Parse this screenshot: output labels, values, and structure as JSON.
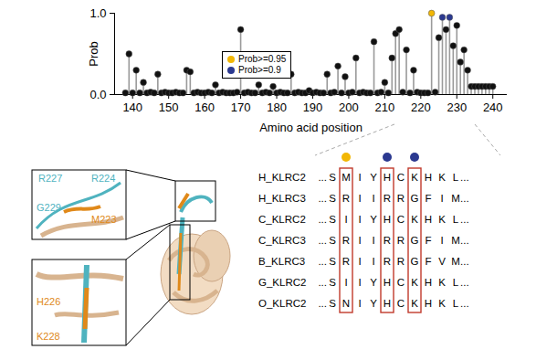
{
  "chart_data": {
    "type": "lollipop",
    "x_label": "Amino acid position",
    "y_label": "Prob",
    "x": [
      138,
      139,
      140,
      141,
      142,
      143,
      144,
      145,
      146,
      147,
      148,
      149,
      150,
      151,
      152,
      153,
      154,
      155,
      156,
      157,
      158,
      159,
      160,
      161,
      162,
      163,
      164,
      165,
      166,
      167,
      168,
      169,
      170,
      171,
      172,
      173,
      174,
      175,
      176,
      177,
      178,
      179,
      180,
      181,
      182,
      183,
      184,
      185,
      186,
      187,
      188,
      189,
      190,
      191,
      192,
      193,
      194,
      195,
      196,
      197,
      198,
      199,
      200,
      201,
      202,
      203,
      204,
      205,
      206,
      207,
      208,
      209,
      210,
      211,
      212,
      213,
      214,
      215,
      216,
      217,
      218,
      219,
      220,
      221,
      222,
      223,
      224,
      225,
      226,
      227,
      228,
      229,
      230,
      231,
      232,
      233,
      234,
      235,
      236,
      237,
      238,
      239,
      240
    ],
    "values": [
      0.02,
      0.5,
      0.02,
      0.3,
      0.02,
      0.15,
      0.02,
      0.03,
      0.02,
      0.25,
      0.02,
      0.03,
      0.02,
      0.02,
      0.03,
      0.02,
      0.02,
      0.3,
      0.28,
      0.02,
      0.03,
      0.02,
      0.02,
      0.03,
      0.02,
      0.12,
      0.02,
      0.03,
      0.02,
      0.02,
      0.02,
      0.03,
      0.8,
      0.02,
      0.03,
      0.02,
      0.02,
      0.12,
      0.02,
      0.03,
      0.02,
      0.1,
      0.02,
      0.03,
      0.02,
      0.02,
      0.25,
      0.02,
      0.03,
      0.02,
      0.02,
      0.05,
      0.02,
      0.03,
      0.02,
      0.02,
      0.25,
      0.02,
      0.03,
      0.35,
      0.02,
      0.22,
      0.02,
      0.03,
      0.45,
      0.02,
      0.03,
      0.02,
      0.02,
      0.65,
      0.02,
      0.03,
      0.15,
      0.02,
      0.45,
      0.75,
      0.8,
      0.03,
      0.55,
      0.02,
      0.3,
      0.03,
      0.02,
      0.02,
      0.02,
      1.0,
      0.03,
      0.7,
      0.95,
      0.8,
      0.95,
      0.6,
      0.85,
      0.4,
      0.55,
      0.3,
      0.1,
      0.1,
      0.1,
      0.1,
      0.1,
      0.1,
      0.1
    ],
    "colors": [
      "#111111",
      "#111111",
      "#111111",
      "#111111",
      "#111111",
      "#111111",
      "#111111",
      "#111111",
      "#111111",
      "#111111",
      "#111111",
      "#111111",
      "#111111",
      "#111111",
      "#111111",
      "#111111",
      "#111111",
      "#111111",
      "#111111",
      "#111111",
      "#111111",
      "#111111",
      "#111111",
      "#111111",
      "#111111",
      "#111111",
      "#111111",
      "#111111",
      "#111111",
      "#111111",
      "#111111",
      "#111111",
      "#111111",
      "#111111",
      "#111111",
      "#111111",
      "#111111",
      "#111111",
      "#111111",
      "#111111",
      "#111111",
      "#111111",
      "#111111",
      "#111111",
      "#111111",
      "#111111",
      "#111111",
      "#111111",
      "#111111",
      "#111111",
      "#111111",
      "#111111",
      "#111111",
      "#111111",
      "#111111",
      "#111111",
      "#111111",
      "#111111",
      "#111111",
      "#111111",
      "#111111",
      "#111111",
      "#111111",
      "#111111",
      "#111111",
      "#111111",
      "#111111",
      "#111111",
      "#111111",
      "#111111",
      "#111111",
      "#111111",
      "#111111",
      "#111111",
      "#111111",
      "#111111",
      "#111111",
      "#111111",
      "#111111",
      "#111111",
      "#111111",
      "#111111",
      "#111111",
      "#111111",
      "#111111",
      "#f2b705",
      "#111111",
      "#111111",
      "#2b3990",
      "#111111",
      "#2b3990",
      "#111111",
      "#111111",
      "#111111",
      "#111111",
      "#111111",
      "#111111",
      "#111111",
      "#111111",
      "#111111",
      "#111111",
      "#111111",
      "#111111"
    ],
    "xlim": [
      135,
      244
    ],
    "xticks": [
      140,
      150,
      160,
      170,
      180,
      190,
      200,
      210,
      220,
      230,
      240
    ],
    "ylim": [
      0,
      1
    ],
    "yticks": [
      0,
      1
    ],
    "legend": "top-center",
    "legend_entries": [
      {
        "label": "Prob>=0.95",
        "color": "#f2b705"
      },
      {
        "label": "Prob>=0.9",
        "color": "#2b3990"
      }
    ]
  },
  "structure": {
    "top_zoom_labels": [
      {
        "text": "R224",
        "color": "#4fb3bf"
      },
      {
        "text": "R227",
        "color": "#4fb3bf"
      },
      {
        "text": "G229",
        "color": "#4fb3bf"
      },
      {
        "text": "M223",
        "color": "#e0891a"
      }
    ],
    "bottom_zoom_labels": [
      {
        "text": "H226",
        "color": "#e0891a"
      },
      {
        "text": "K228",
        "color": "#e0891a"
      }
    ]
  },
  "alignment": {
    "prefix": "...",
    "suffix": "...",
    "rows": [
      {
        "name": "H_KLRC2",
        "sequence": "SMIYHCKHKL"
      },
      {
        "name": "H_KLRC3",
        "sequence": "SRIIRRGFIM"
      },
      {
        "name": "C_KLRC2",
        "sequence": "SIIYHCKHKL"
      },
      {
        "name": "C_KLRC3",
        "sequence": "SRIIRRGFIM"
      },
      {
        "name": "B_KLRC3",
        "sequence": "SRIIRRGFVM"
      },
      {
        "name": "G_KLRC2",
        "sequence": "SIIYHCKHKL"
      },
      {
        "name": "O_KLRC2",
        "sequence": "SNIYHCKHKL"
      }
    ],
    "marked_columns": [
      {
        "column": 1,
        "color": "#f2b705"
      },
      {
        "column": 4,
        "color": "#2b3990"
      },
      {
        "column": 6,
        "color": "#2b3990"
      }
    ]
  }
}
